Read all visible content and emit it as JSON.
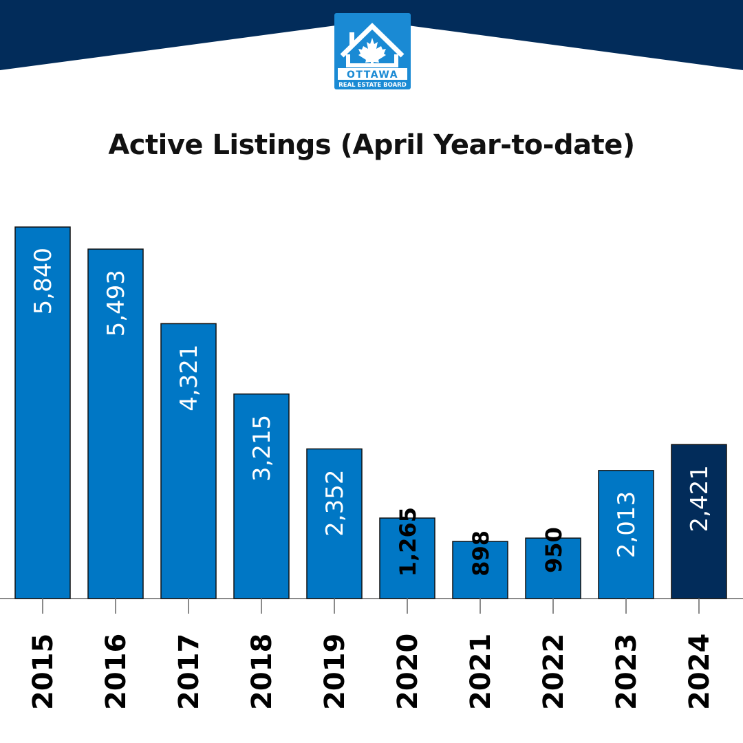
{
  "brand": {
    "logo_text": "OTTAWA",
    "logo_subtext": "REAL ESTATE BOARD",
    "navy": "#022c5a",
    "logo_blue": "#1a8ad4"
  },
  "chart_data": {
    "type": "bar",
    "title": "Active Listings (April Year-to-date)",
    "categories": [
      "2015",
      "2016",
      "2017",
      "2018",
      "2019",
      "2020",
      "2021",
      "2022",
      "2023",
      "2024"
    ],
    "values": [
      5840,
      5493,
      4321,
      3215,
      2352,
      1265,
      898,
      950,
      2013,
      2421
    ],
    "data_labels": [
      "5,840",
      "5,493",
      "4,321",
      "3,215",
      "2,352",
      "1,265",
      "898",
      "950",
      "2,013",
      "2,421"
    ],
    "highlight_category": "2024",
    "colors": {
      "bar": "#0077c5",
      "highlight": "#022c5a",
      "label_inside": "#ffffff",
      "label_outside": "#000000"
    },
    "ylim": [
      0,
      5900
    ],
    "grid": false,
    "legend": "none"
  }
}
